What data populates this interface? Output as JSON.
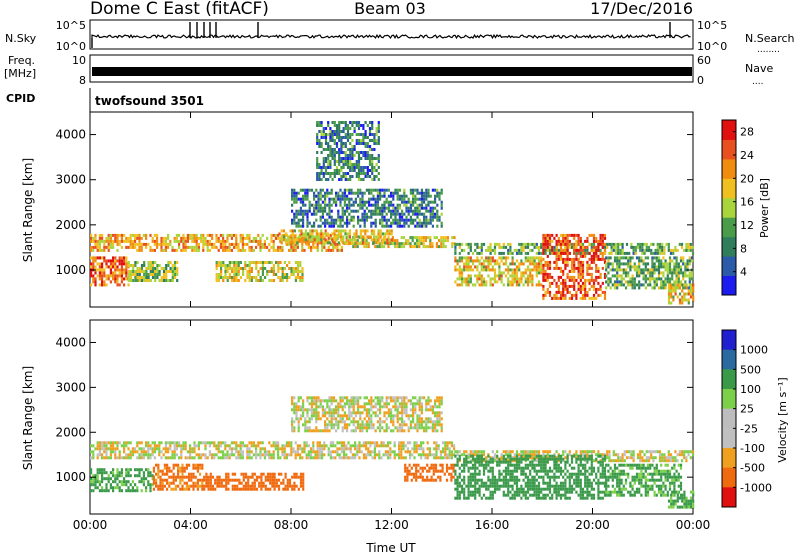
{
  "header": {
    "station": "Dome C East (fitACF)",
    "beam": "Beam 03",
    "date": "17/Dec/2016"
  },
  "side_labels": {
    "nsky": "N.Sky",
    "nsearch": "N.Search",
    "nsearch_dots": "........",
    "freq_line1": "Freq.",
    "freq_line2": "[MHz]",
    "nave": "Nave",
    "nave_dots": "....",
    "cpid": "CPID"
  },
  "cpid_text": "twofsound 3501",
  "noise_panel": {
    "left_ticks": [
      "10^5",
      "10^0"
    ],
    "right_ticks": [
      "10^5",
      "10^0"
    ]
  },
  "freq_panel": {
    "left_ticks": [
      "10",
      "8"
    ],
    "right_ticks": [
      "60",
      "0"
    ]
  },
  "colors": {
    "power_scale": [
      "#1c1cf0",
      "#2a5aa8",
      "#2f7d5a",
      "#4a9c4a",
      "#a9d43c",
      "#f0c020",
      "#f08c10",
      "#e85020",
      "#e01010"
    ],
    "velocity_scale": [
      "#e01010",
      "#f06a10",
      "#f0a020",
      "#c0c0c0",
      "#bdbdbd",
      "#7cd04a",
      "#3a9a4a",
      "#2a6aa0",
      "#2020d0"
    ]
  },
  "chart_data": [
    {
      "type": "heatmap",
      "title": "",
      "xlabel": "",
      "ylabel": "Slant Range [km]",
      "x_ticks": [
        "00:00",
        "04:00",
        "08:00",
        "12:00",
        "16:00",
        "20:00",
        "00:00"
      ],
      "xlim_hours": [
        0,
        24
      ],
      "y_ticks": [
        1000,
        2000,
        3000,
        4000
      ],
      "ylim": [
        180,
        4500
      ],
      "colorbar": {
        "label": "Power [dB]",
        "ticks": [
          4,
          8,
          12,
          16,
          20,
          24,
          28
        ],
        "range": [
          0,
          30
        ]
      },
      "grid": false,
      "regions": [
        {
          "t0": 0.0,
          "t1": 10.0,
          "r0": 1450,
          "r1": 1800,
          "value": 20
        },
        {
          "t0": 10.0,
          "t1": 14.5,
          "r0": 1550,
          "r1": 1750,
          "value": 17
        },
        {
          "t0": 14.5,
          "t1": 24.0,
          "r0": 1350,
          "r1": 1600,
          "value": 12
        },
        {
          "t0": 0.0,
          "t1": 1.5,
          "r0": 700,
          "r1": 1300,
          "value": 24
        },
        {
          "t0": 1.5,
          "t1": 3.5,
          "r0": 800,
          "r1": 1200,
          "value": 14
        },
        {
          "t0": 5.0,
          "t1": 8.5,
          "r0": 800,
          "r1": 1200,
          "value": 17
        },
        {
          "t0": 7.5,
          "t1": 12.0,
          "r0": 1600,
          "r1": 1900,
          "value": 18
        },
        {
          "t0": 8.0,
          "t1": 14.0,
          "r0": 2000,
          "r1": 2800,
          "value": 8
        },
        {
          "t0": 14.5,
          "t1": 18.0,
          "r0": 700,
          "r1": 1300,
          "value": 18
        },
        {
          "t0": 18.0,
          "t1": 20.5,
          "r0": 400,
          "r1": 1800,
          "value": 25
        },
        {
          "t0": 20.5,
          "t1": 24.0,
          "r0": 600,
          "r1": 1300,
          "value": 12
        },
        {
          "t0": 23.0,
          "t1": 24.0,
          "r0": 300,
          "r1": 700,
          "value": 18
        },
        {
          "t0": 9.0,
          "t1": 11.5,
          "r0": 3000,
          "r1": 4300,
          "value": 8
        }
      ]
    },
    {
      "type": "heatmap",
      "title": "",
      "xlabel": "Time UT",
      "ylabel": "Slant Range [km]",
      "x_ticks": [
        "00:00",
        "04:00",
        "08:00",
        "12:00",
        "16:00",
        "20:00",
        "00:00"
      ],
      "xlim_hours": [
        0,
        24
      ],
      "y_ticks": [
        1000,
        2000,
        3000,
        4000
      ],
      "ylim": [
        180,
        4500
      ],
      "colorbar": {
        "label": "Velocity [m s⁻¹]",
        "ticks": [
          "1000",
          "500",
          "100",
          "25",
          "-25",
          "-100",
          "-500",
          "-1000"
        ]
      },
      "grid": false,
      "regions": [
        {
          "t0": 0.0,
          "t1": 14.5,
          "r0": 1450,
          "r1": 1800,
          "value": 0
        },
        {
          "t0": 14.5,
          "t1": 24.0,
          "r0": 1350,
          "r1": 1600,
          "value": 0
        },
        {
          "t0": 0.0,
          "t1": 2.5,
          "r0": 700,
          "r1": 1200,
          "value": 150
        },
        {
          "t0": 2.5,
          "t1": 4.5,
          "r0": 700,
          "r1": 1300,
          "value": -150
        },
        {
          "t0": 4.5,
          "t1": 8.5,
          "r0": 700,
          "r1": 1100,
          "value": -300
        },
        {
          "t0": 8.0,
          "t1": 14.0,
          "r0": 2000,
          "r1": 2800,
          "value": 0
        },
        {
          "t0": 12.5,
          "t1": 14.5,
          "r0": 900,
          "r1": 1300,
          "value": -300
        },
        {
          "t0": 14.5,
          "t1": 20.5,
          "r0": 500,
          "r1": 1500,
          "value": 250
        },
        {
          "t0": 20.5,
          "t1": 23.5,
          "r0": 600,
          "r1": 1300,
          "value": 150
        },
        {
          "t0": 23.0,
          "t1": 24.0,
          "r0": 300,
          "r1": 700,
          "value": 150
        }
      ]
    }
  ]
}
